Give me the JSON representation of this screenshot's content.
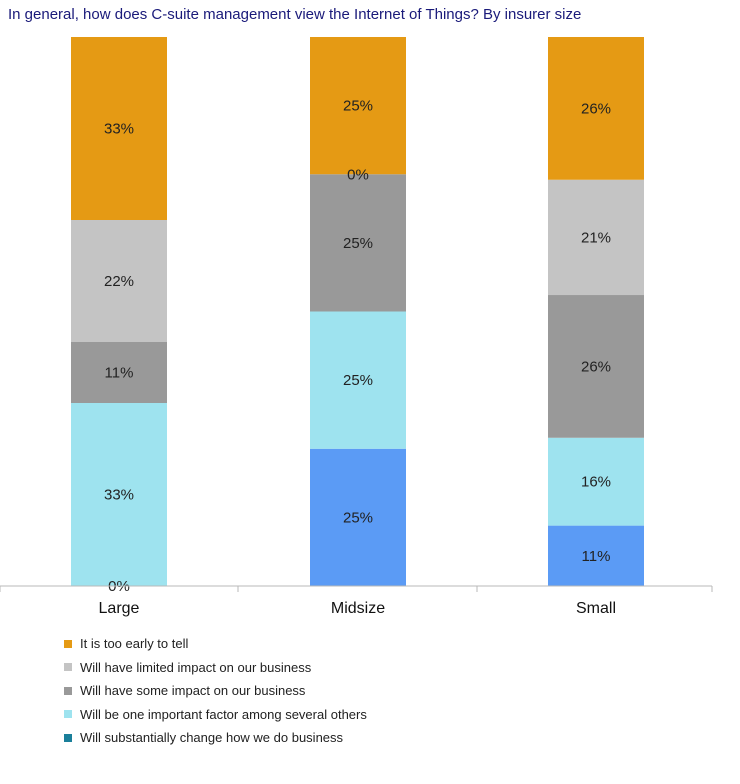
{
  "chart_data": {
    "type": "bar",
    "stacked": true,
    "title": "In general, how does C-suite management view the Internet of Things? By insurer size",
    "categories": [
      "Large",
      "Midsize",
      "Small"
    ],
    "series": [
      {
        "name": "Will substantially change how we do business",
        "color": "#5b9bf5",
        "values": [
          0,
          25,
          11
        ],
        "labels": [
          "0%",
          "25%",
          "11%"
        ]
      },
      {
        "name": "Will be one important factor among several others",
        "color": "#9ee3ef",
        "values": [
          33,
          25,
          16
        ],
        "labels": [
          "33%",
          "25%",
          "16%"
        ]
      },
      {
        "name": "Will have some impact on our business",
        "color": "#999999",
        "values": [
          11,
          25,
          26
        ],
        "labels": [
          "11%",
          "25%",
          "26%"
        ]
      },
      {
        "name": "Will have limited impact on our business",
        "color": "#c4c4c4",
        "values": [
          22,
          0,
          21
        ],
        "labels": [
          "22%",
          "0%",
          "21%"
        ]
      },
      {
        "name": "It is too early to tell",
        "color": "#e59a14",
        "values": [
          33,
          25,
          26
        ],
        "labels": [
          "33%",
          "25%",
          "26%"
        ]
      }
    ],
    "ylim": [
      0,
      100
    ],
    "xlabel": "",
    "ylabel": "",
    "legend": {
      "position": "bottom",
      "order": [
        4,
        3,
        2,
        1,
        0
      ],
      "items": [
        {
          "label": "It is too early to tell",
          "color": "#e59a14"
        },
        {
          "label": "Will have limited impact on our business",
          "color": "#c4c4c4"
        },
        {
          "label": "Will have some impact on our business",
          "color": "#999999"
        },
        {
          "label": "Will be one important factor among several others",
          "color": "#9ee3ef"
        },
        {
          "label": "Will substantially change how we do business",
          "color": "#1a7f9a"
        }
      ]
    }
  }
}
